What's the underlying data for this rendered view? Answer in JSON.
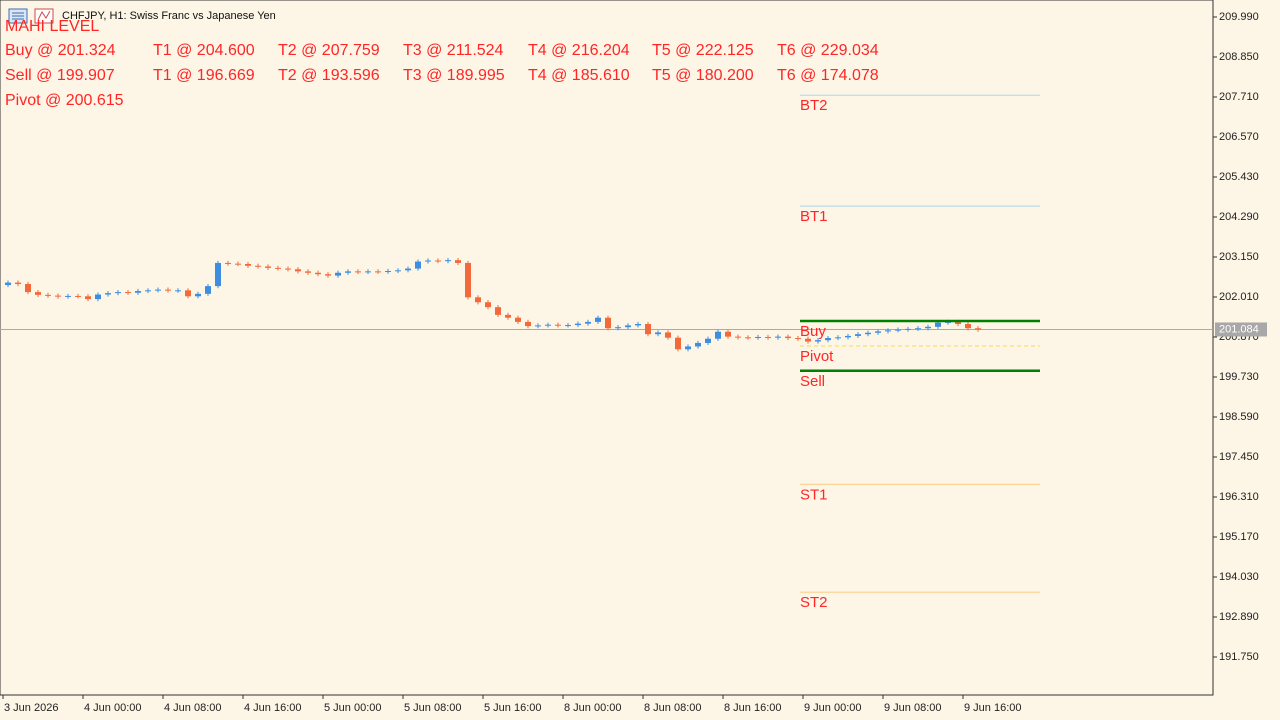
{
  "header": {
    "symbol_text": "CHFJPY, H1:  Swiss Franc vs Japanese Yen",
    "indicator": "MAHI LEVEL"
  },
  "chart_data": {
    "type": "candlestick",
    "categories": [
      "3 Jun 2026",
      null,
      null,
      null,
      null,
      null,
      null,
      null,
      "4 Jun 00:00",
      null,
      null,
      null,
      null,
      null,
      null,
      null,
      "4 Jun 08:00",
      null,
      null,
      null,
      null,
      null,
      null,
      null,
      "4 Jun 16:00",
      null,
      null,
      null,
      null,
      null,
      null,
      null,
      "5 Jun 00:00",
      null,
      null,
      null,
      null,
      null,
      null,
      null,
      "5 Jun 08:00",
      null,
      null,
      null,
      null,
      null,
      null,
      null,
      "5 Jun 16:00",
      null,
      null,
      null,
      null,
      null,
      null,
      null,
      "8 Jun 00:00",
      null,
      null,
      null,
      null,
      null,
      null,
      null,
      "8 Jun 08:00",
      null,
      null,
      null,
      null,
      null,
      null,
      null,
      "8 Jun 16:00",
      null,
      null,
      null,
      null,
      null,
      null,
      null,
      "9 Jun 00:00",
      null,
      null,
      null,
      null,
      null,
      null,
      null,
      "9 Jun 08:00",
      null,
      null,
      null,
      null,
      null,
      null,
      null,
      "9 Jun 16:00",
      null
    ],
    "open": [
      202.35,
      202.42,
      202.38,
      202.15,
      202.07,
      202.05,
      202.02,
      202.04,
      202.03,
      201.95,
      202.08,
      202.12,
      202.15,
      202.13,
      202.18,
      202.2,
      202.22,
      202.19,
      202.2,
      202.03,
      202.1,
      202.32,
      202.98,
      202.96,
      202.95,
      202.9,
      202.88,
      202.84,
      202.82,
      202.8,
      202.74,
      202.7,
      202.66,
      202.62,
      202.7,
      202.74,
      202.72,
      202.74,
      202.73,
      202.75,
      202.77,
      202.82,
      203.02,
      203.05,
      203.03,
      203.06,
      202.98,
      202.0,
      201.86,
      201.72,
      201.5,
      201.42,
      201.3,
      201.18,
      201.2,
      201.22,
      201.2,
      201.21,
      201.25,
      201.3,
      201.42,
      201.12,
      201.15,
      201.2,
      201.24,
      200.95,
      201.0,
      200.85,
      200.52,
      200.6,
      200.7,
      200.82,
      201.02,
      200.88,
      200.86,
      200.85,
      200.87,
      200.85,
      200.88,
      200.84,
      200.82,
      200.74,
      200.78,
      200.84,
      200.86,
      200.9,
      200.95,
      200.99,
      201.03,
      201.06,
      201.08,
      201.1,
      201.12,
      201.16,
      201.28,
      201.3,
      201.24,
      201.12
    ],
    "high": [
      202.48,
      202.48,
      202.44,
      202.21,
      202.13,
      202.11,
      202.1,
      202.1,
      202.09,
      202.14,
      202.18,
      202.21,
      202.21,
      202.24,
      202.26,
      202.28,
      202.28,
      202.26,
      202.26,
      202.16,
      202.38,
      203.04,
      203.04,
      203.02,
      203.01,
      202.96,
      202.94,
      202.9,
      202.88,
      202.86,
      202.8,
      202.76,
      202.72,
      202.76,
      202.8,
      202.8,
      202.8,
      202.8,
      202.81,
      202.83,
      202.88,
      203.08,
      203.11,
      203.11,
      203.12,
      203.12,
      203.04,
      202.06,
      201.92,
      201.78,
      201.56,
      201.48,
      201.36,
      201.26,
      201.28,
      201.28,
      201.27,
      201.31,
      201.36,
      201.48,
      201.48,
      201.21,
      201.26,
      201.3,
      201.3,
      201.06,
      201.06,
      200.91,
      200.66,
      200.76,
      200.88,
      201.08,
      201.08,
      200.94,
      200.92,
      200.93,
      200.93,
      200.94,
      200.94,
      200.9,
      200.88,
      200.84,
      200.9,
      200.92,
      200.96,
      201.01,
      201.05,
      201.09,
      201.12,
      201.14,
      201.16,
      201.18,
      201.22,
      201.34,
      201.36,
      201.36,
      201.3,
      201.18
    ],
    "low": [
      202.29,
      202.32,
      202.09,
      202.01,
      201.99,
      201.96,
      201.96,
      201.97,
      201.89,
      201.89,
      202.02,
      202.06,
      202.07,
      202.07,
      202.12,
      202.14,
      202.13,
      202.13,
      201.97,
      201.97,
      202.04,
      202.26,
      202.9,
      202.89,
      202.84,
      202.82,
      202.78,
      202.76,
      202.74,
      202.68,
      202.64,
      202.6,
      202.56,
      202.56,
      202.64,
      202.66,
      202.66,
      202.67,
      202.67,
      202.69,
      202.71,
      202.76,
      202.96,
      202.97,
      202.97,
      202.92,
      201.94,
      201.8,
      201.66,
      201.44,
      201.36,
      201.24,
      201.12,
      201.12,
      201.14,
      201.14,
      201.14,
      201.15,
      201.19,
      201.24,
      201.06,
      201.06,
      201.09,
      201.14,
      200.89,
      200.89,
      200.79,
      200.46,
      200.46,
      200.54,
      200.64,
      200.76,
      200.82,
      200.8,
      200.79,
      200.79,
      200.79,
      200.79,
      200.78,
      200.76,
      200.68,
      200.68,
      200.72,
      200.78,
      200.8,
      200.84,
      200.89,
      200.93,
      200.97,
      201.0,
      201.02,
      201.04,
      201.06,
      201.1,
      201.22,
      201.18,
      201.06,
      201.02
    ],
    "close": [
      202.42,
      202.38,
      202.15,
      202.07,
      202.05,
      202.02,
      202.04,
      202.03,
      201.95,
      202.08,
      202.12,
      202.15,
      202.13,
      202.18,
      202.2,
      202.22,
      202.19,
      202.2,
      202.03,
      202.1,
      202.32,
      202.98,
      202.96,
      202.95,
      202.9,
      202.88,
      202.84,
      202.82,
      202.8,
      202.74,
      202.7,
      202.66,
      202.62,
      202.7,
      202.74,
      202.72,
      202.74,
      202.73,
      202.75,
      202.77,
      202.82,
      203.02,
      203.05,
      203.03,
      203.06,
      202.98,
      202.0,
      201.86,
      201.72,
      201.5,
      201.42,
      201.3,
      201.18,
      201.2,
      201.22,
      201.2,
      201.21,
      201.25,
      201.3,
      201.42,
      201.12,
      201.15,
      201.2,
      201.24,
      200.95,
      201.0,
      200.85,
      200.52,
      200.6,
      200.7,
      200.82,
      201.02,
      200.88,
      200.86,
      200.85,
      200.87,
      200.85,
      200.88,
      200.84,
      200.82,
      200.74,
      200.78,
      200.84,
      200.86,
      200.9,
      200.95,
      200.99,
      201.03,
      201.06,
      201.08,
      201.1,
      201.12,
      201.16,
      201.28,
      201.3,
      201.24,
      201.12,
      201.08
    ],
    "up_color": "#3d8ee0",
    "down_color": "#f26a3c",
    "ylim": [
      190.667,
      210.474
    ],
    "yticks": [
      {
        "value": 209.99,
        "label": "209.990"
      },
      {
        "value": 208.85,
        "label": "208.850"
      },
      {
        "value": 207.71,
        "label": "207.710"
      },
      {
        "value": 206.57,
        "label": "206.570"
      },
      {
        "value": 205.43,
        "label": "205.430"
      },
      {
        "value": 204.29,
        "label": "204.290"
      },
      {
        "value": 203.15,
        "label": "203.150"
      },
      {
        "value": 202.01,
        "label": "202.010"
      },
      {
        "value": 200.87,
        "label": "200.870"
      },
      {
        "value": 199.73,
        "label": "199.730"
      },
      {
        "value": 198.59,
        "label": "198.590"
      },
      {
        "value": 197.45,
        "label": "197.450"
      },
      {
        "value": 196.31,
        "label": "196.310"
      },
      {
        "value": 195.17,
        "label": "195.170"
      },
      {
        "value": 194.03,
        "label": "194.030"
      },
      {
        "value": 192.89,
        "label": "192.890"
      },
      {
        "value": 191.75,
        "label": "191.750"
      }
    ],
    "last_price": 201.084,
    "buy_levels": {
      "values": [
        201.324,
        204.6,
        207.759,
        211.524,
        216.204,
        222.125,
        229.034
      ],
      "value_labels": [
        "Buy @ 201.324",
        "T1 @ 204.600",
        "T2 @ 207.759",
        "T3 @ 211.524",
        "T4 @ 216.204",
        "T5 @ 222.125",
        "T6 @ 229.034"
      ]
    },
    "sell_levels": {
      "values": [
        199.907,
        196.669,
        193.596,
        189.995,
        185.61,
        180.2,
        174.078
      ],
      "value_labels": [
        "Sell @ 199.907",
        "T1 @ 196.669",
        "T2 @ 193.596",
        "T3 @ 189.995",
        "T4 @ 185.610",
        "T5 @ 180.200",
        "T6 @ 174.078"
      ]
    },
    "pivot": {
      "value": 200.615,
      "value_label": "Pivot @ 200.615"
    },
    "buy_line_labels": [
      "Buy",
      "BT1",
      "BT2"
    ],
    "sell_line_labels": [
      "Sell",
      "ST1",
      "ST2"
    ],
    "pivot_line_label": "Pivot",
    "buy_line_colors": [
      "#008000",
      "#b9dcef",
      "#b9dcef"
    ],
    "sell_line_colors": [
      "#008000",
      "#fcd49a",
      "#fcd49a"
    ],
    "pivot_color": "#f5e05a"
  }
}
